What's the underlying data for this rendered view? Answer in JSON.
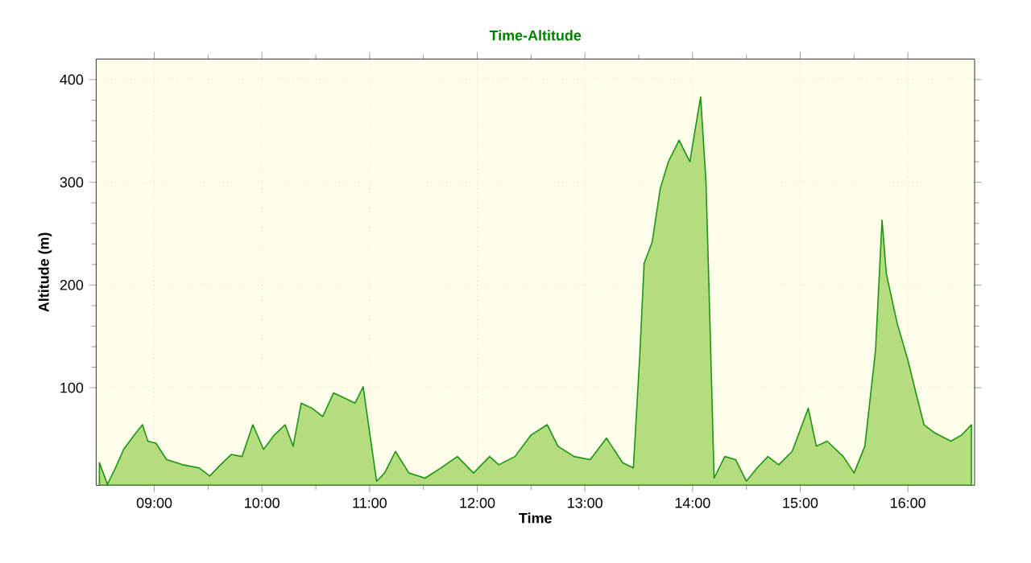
{
  "chart_data": {
    "type": "area",
    "title": "Time-Altitude",
    "xlabel": "Time",
    "ylabel": "Altitude (m)",
    "x": [
      8.49,
      8.565,
      8.64,
      8.715,
      8.815,
      8.89,
      8.94,
      9.015,
      9.115,
      9.265,
      9.415,
      9.515,
      9.615,
      9.715,
      9.815,
      9.915,
      10.015,
      10.115,
      10.215,
      10.29,
      10.365,
      10.465,
      10.565,
      10.665,
      10.765,
      10.865,
      10.94,
      10.99,
      11.065,
      11.14,
      11.24,
      11.365,
      11.515,
      11.665,
      11.815,
      11.965,
      12.115,
      12.2,
      12.35,
      12.5,
      12.65,
      12.75,
      12.9,
      13.05,
      13.2,
      13.35,
      13.45,
      13.51,
      13.55,
      13.625,
      13.7,
      13.775,
      13.875,
      13.975,
      14.025,
      14.075,
      14.125,
      14.16,
      14.2,
      14.3,
      14.4,
      14.5,
      14.6,
      14.7,
      14.8,
      14.925,
      15.075,
      15.15,
      15.25,
      15.4,
      15.5,
      15.6,
      15.7,
      15.76,
      15.8,
      15.9,
      16.0,
      16.075,
      16.15,
      16.25,
      16.4,
      16.5,
      16.59
    ],
    "series": [
      {
        "color": "#b5dc7e",
        "values": [
          27,
          6,
          22,
          40,
          54,
          64,
          48,
          46,
          30,
          25,
          22,
          14,
          25,
          35,
          33,
          64,
          40,
          54,
          64,
          43,
          85,
          80,
          72,
          95,
          90,
          85,
          101,
          64,
          9,
          17,
          38,
          17,
          12,
          22,
          33,
          17,
          33,
          25,
          33,
          54,
          64,
          43,
          33,
          30,
          51,
          27,
          22,
          132,
          221,
          242,
          294,
          320,
          341,
          320,
          352,
          383,
          300,
          169,
          12,
          33,
          30,
          9,
          22,
          33,
          25,
          38,
          80,
          43,
          48,
          33,
          17,
          43,
          137,
          263,
          211,
          163,
          127,
          95,
          64,
          56,
          48,
          54,
          64
        ]
      }
    ],
    "xlim": [
      8.46,
      16.62
    ],
    "ylim": [
      5,
      420
    ],
    "xticks": [
      {
        "value": 9,
        "label": "09:00"
      },
      {
        "value": 10,
        "label": "10:00"
      },
      {
        "value": 11,
        "label": "11:00"
      },
      {
        "value": 12,
        "label": "12:00"
      },
      {
        "value": 13,
        "label": "13:00"
      },
      {
        "value": 14,
        "label": "14:00"
      },
      {
        "value": 15,
        "label": "15:00"
      },
      {
        "value": 16,
        "label": "16:00"
      }
    ],
    "yticks": [
      100,
      200,
      300,
      400
    ],
    "grid": true
  }
}
